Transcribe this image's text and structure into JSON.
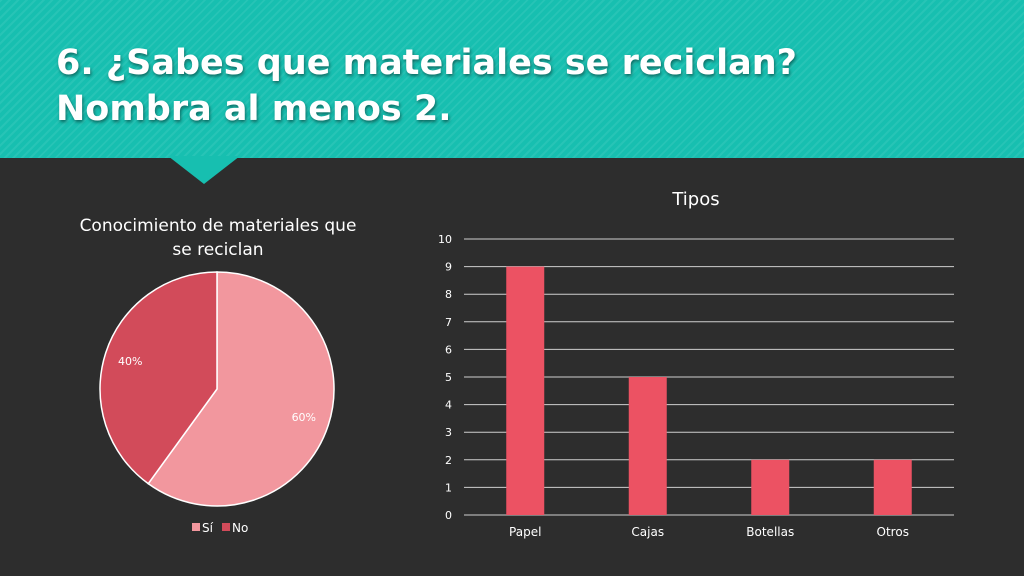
{
  "slide": {
    "title_line1": "6. ¿Sabes que materiales se reciclan?",
    "title_line2": "Nombra al menos 2."
  },
  "colors": {
    "header": "#17bfb0",
    "background": "#2d2d2d",
    "pie_si": "#f2979e",
    "pie_no": "#d24b5a",
    "bar": "#ec5263",
    "text": "#ffffff"
  },
  "chart_data": [
    {
      "type": "pie",
      "title_line1": "Conocimiento de materiales que",
      "title_line2": "se reciclan",
      "categories": [
        "Sí",
        "No"
      ],
      "values": [
        60,
        40
      ],
      "data_labels": [
        "60%",
        "40%"
      ],
      "legend_position": "bottom"
    },
    {
      "type": "bar",
      "title": "Tipos",
      "categories": [
        "Papel",
        "Cajas",
        "Botellas",
        "Otros"
      ],
      "values": [
        9,
        5,
        2,
        2
      ],
      "ylim": [
        0,
        10
      ],
      "yticks": [
        "0",
        "1",
        "2",
        "3",
        "4",
        "5",
        "6",
        "7",
        "8",
        "9",
        "10"
      ],
      "grid": true,
      "legend": false
    }
  ]
}
